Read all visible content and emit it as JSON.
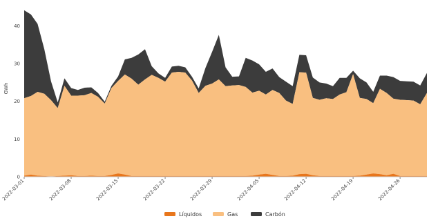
{
  "chart_data": {
    "type": "area",
    "stacked": true,
    "ylabel": "GWh",
    "ylim": [
      0,
      45
    ],
    "yticks": [
      0,
      10,
      20,
      30,
      40
    ],
    "x": [
      "2022-03-01",
      "2022-03-02",
      "2022-03-03",
      "2022-03-04",
      "2022-03-05",
      "2022-03-06",
      "2022-03-07",
      "2022-03-08",
      "2022-03-09",
      "2022-03-10",
      "2022-03-11",
      "2022-03-12",
      "2022-03-13",
      "2022-03-14",
      "2022-03-15",
      "2022-03-16",
      "2022-03-17",
      "2022-03-18",
      "2022-03-19",
      "2022-03-20",
      "2022-03-21",
      "2022-03-22",
      "2022-03-23",
      "2022-03-24",
      "2022-03-25",
      "2022-03-26",
      "2022-03-27",
      "2022-03-28",
      "2022-03-29",
      "2022-03-30",
      "2022-03-31",
      "2022-04-01",
      "2022-04-02",
      "2022-04-03",
      "2022-04-04",
      "2022-04-05",
      "2022-04-06",
      "2022-04-07",
      "2022-04-08",
      "2022-04-09",
      "2022-04-10",
      "2022-04-11",
      "2022-04-12",
      "2022-04-13",
      "2022-04-14",
      "2022-04-15",
      "2022-04-16",
      "2022-04-17",
      "2022-04-18",
      "2022-04-19",
      "2022-04-20",
      "2022-04-21",
      "2022-04-22",
      "2022-04-23",
      "2022-04-24",
      "2022-04-25",
      "2022-04-26",
      "2022-04-27",
      "2022-04-28",
      "2022-04-29",
      "2022-04-30"
    ],
    "xticks": [
      "2022-03-01",
      "2022-03-08",
      "2022-03-15",
      "2022-03-22",
      "2022-03-29",
      "2022-04-05",
      "2022-04-12",
      "2022-04-19",
      "2022-04-26"
    ],
    "legend_position": "bottom",
    "series": [
      {
        "name": "Líquidos",
        "color": "#e8761c",
        "values": [
          0.3,
          0.6,
          0.3,
          0.2,
          0.1,
          0.2,
          0.3,
          0.4,
          0.2,
          0.2,
          0.3,
          0.2,
          0.2,
          0.5,
          0.9,
          0.6,
          0.2,
          0.2,
          0.2,
          0.2,
          0.2,
          0.2,
          0.2,
          0.2,
          0.2,
          0.2,
          0.2,
          0.2,
          0.2,
          0.2,
          0.2,
          0.2,
          0.2,
          0.2,
          0.3,
          0.6,
          0.8,
          0.5,
          0.2,
          0.2,
          0.3,
          0.7,
          0.8,
          0.4,
          0.2,
          0.2,
          0.2,
          0.2,
          0.2,
          0.2,
          0.3,
          0.6,
          0.9,
          0.7,
          0.4,
          0.8,
          0.2,
          0.2,
          0.2,
          0.2,
          0.2
        ]
      },
      {
        "name": "Gas",
        "color": "#f9bf80",
        "values": [
          20.5,
          20.8,
          22.2,
          21.8,
          20.2,
          18.0,
          23.8,
          21.1,
          21.3,
          21.4,
          21.9,
          21.0,
          19.2,
          23.0,
          24.5,
          26.5,
          25.8,
          24.2,
          25.6,
          26.8,
          26.0,
          25.0,
          27.4,
          27.6,
          27.4,
          25.3,
          22.0,
          23.9,
          24.5,
          25.6,
          23.8,
          24.0,
          24.1,
          23.6,
          22.0,
          22.2,
          21.0,
          22.5,
          22.0,
          20.0,
          19.0,
          27.0,
          26.8,
          20.5,
          20.2,
          20.6,
          20.4,
          21.6,
          22.2,
          27.0,
          20.6,
          20.0,
          18.6,
          22.6,
          21.8,
          19.9,
          20.2,
          20.1,
          20.0,
          19.0,
          22.0
        ]
      },
      {
        "name": "Carbón",
        "color": "#3c3c3c",
        "values": [
          23.3,
          21.6,
          18.0,
          11.8,
          5.0,
          1.5,
          2.0,
          2.0,
          1.5,
          2.0,
          1.5,
          1.0,
          0.5,
          0.6,
          1.2,
          4.0,
          5.5,
          8.0,
          8.0,
          2.3,
          1.2,
          1.0,
          1.6,
          1.6,
          1.4,
          1.0,
          1.2,
          4.7,
          8.4,
          11.8,
          5.0,
          2.3,
          2.3,
          7.7,
          8.5,
          7.0,
          6.0,
          5.7,
          4.2,
          5.0,
          4.7,
          4.6,
          4.6,
          5.4,
          4.6,
          3.9,
          3.4,
          4.4,
          3.8,
          0.9,
          5.2,
          4.4,
          3.0,
          3.5,
          4.6,
          5.7,
          5.0,
          5.0,
          5.0,
          5.0,
          5.3
        ]
      }
    ]
  }
}
